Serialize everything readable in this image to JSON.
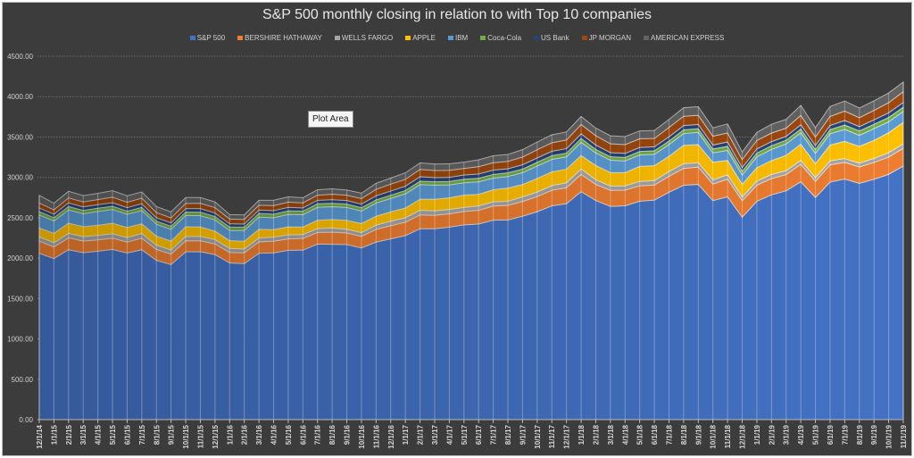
{
  "chart_data": {
    "type": "area",
    "stacked": true,
    "title": "S&P 500  monthly closing in relation to with Top 10 companies",
    "ylim": [
      0,
      4500
    ],
    "yticks": [
      "0.00",
      "500.00",
      "1000.00",
      "1500.00",
      "2000.00",
      "2500.00",
      "3000.00",
      "3500.00",
      "4000.00",
      "4500.00"
    ],
    "grid": true,
    "legend_position": "top",
    "tooltip": "Plot Area",
    "x": [
      "12/1/14",
      "1/1/15",
      "2/1/15",
      "3/1/15",
      "4/1/15",
      "5/1/15",
      "6/1/15",
      "7/1/15",
      "8/1/15",
      "9/1/15",
      "10/1/15",
      "11/1/15",
      "12/1/15",
      "1/1/16",
      "2/1/16",
      "3/1/16",
      "4/1/16",
      "5/1/16",
      "6/1/16",
      "7/1/16",
      "8/1/16",
      "9/1/16",
      "10/1/16",
      "11/1/16",
      "12/1/16",
      "1/1/17",
      "2/1/17",
      "3/1/17",
      "4/1/17",
      "5/1/17",
      "6/1/17",
      "7/1/17",
      "8/1/17",
      "9/1/17",
      "10/1/17",
      "11/1/17",
      "12/1/17",
      "1/1/18",
      "2/1/18",
      "3/1/18",
      "4/1/18",
      "5/1/18",
      "6/1/18",
      "7/1/18",
      "8/1/18",
      "9/1/18",
      "10/1/18",
      "11/1/18",
      "12/1/18",
      "1/1/19",
      "2/1/19",
      "3/1/19",
      "4/1/19",
      "5/1/19",
      "6/1/19",
      "7/1/19",
      "8/1/19",
      "9/1/19",
      "10/1/19",
      "11/1/19"
    ],
    "series": [
      {
        "name": "S&P 500",
        "color": "#4472c4",
        "values": [
          2059,
          1995,
          2104,
          2068,
          2086,
          2107,
          2063,
          2104,
          1972,
          1920,
          2079,
          2080,
          2044,
          1940,
          1932,
          2060,
          2065,
          2097,
          2099,
          2174,
          2171,
          2168,
          2126,
          2199,
          2239,
          2279,
          2364,
          2363,
          2384,
          2412,
          2423,
          2470,
          2472,
          2519,
          2575,
          2648,
          2674,
          2824,
          2714,
          2641,
          2648,
          2705,
          2718,
          2816,
          2902,
          2914,
          2712,
          2760,
          2507,
          2704,
          2784,
          2834,
          2946,
          2752,
          2942,
          2980,
          2926,
          2977,
          3038,
          3141
        ]
      },
      {
        "name": "BERSHIRE HATHAWAY",
        "color": "#ed7d31",
        "values": [
          150,
          144,
          147,
          144,
          141,
          140,
          136,
          143,
          135,
          130,
          136,
          134,
          132,
          130,
          134,
          142,
          145,
          140,
          145,
          144,
          151,
          144,
          144,
          157,
          163,
          165,
          171,
          167,
          165,
          165,
          169,
          175,
          181,
          183,
          187,
          193,
          198,
          214,
          199,
          199,
          194,
          191,
          187,
          198,
          209,
          214,
          205,
          218,
          204,
          201,
          201,
          201,
          217,
          199,
          213,
          205,
          203,
          208,
          213,
          220
        ]
      },
      {
        "name": "WELLS FARGO",
        "color": "#a5a5a5",
        "values": [
          55,
          52,
          55,
          54,
          55,
          56,
          56,
          58,
          53,
          51,
          54,
          55,
          54,
          50,
          47,
          48,
          50,
          51,
          47,
          48,
          51,
          44,
          46,
          53,
          55,
          56,
          58,
          56,
          54,
          51,
          55,
          53,
          51,
          56,
          56,
          57,
          61,
          66,
          58,
          52,
          52,
          54,
          55,
          57,
          58,
          53,
          53,
          54,
          46,
          49,
          50,
          48,
          48,
          44,
          50,
          48,
          47,
          50,
          54,
          54
        ]
      },
      {
        "name": "APPLE",
        "color": "#ffc000",
        "values": [
          110,
          117,
          128,
          124,
          125,
          130,
          125,
          121,
          113,
          110,
          120,
          118,
          105,
          97,
          97,
          108,
          94,
          100,
          95,
          104,
          106,
          113,
          113,
          111,
          116,
          121,
          137,
          144,
          144,
          153,
          144,
          149,
          164,
          154,
          169,
          171,
          169,
          167,
          178,
          168,
          165,
          187,
          185,
          190,
          228,
          225,
          218,
          179,
          158,
          166,
          173,
          190,
          200,
          175,
          197,
          213,
          209,
          224,
          249,
          267
        ]
      },
      {
        "name": "IBM",
        "color": "#5b9bd5",
        "values": [
          160,
          153,
          163,
          160,
          171,
          169,
          163,
          162,
          147,
          145,
          140,
          139,
          138,
          125,
          131,
          151,
          146,
          153,
          152,
          160,
          158,
          159,
          154,
          162,
          166,
          175,
          180,
          174,
          160,
          152,
          154,
          144,
          143,
          146,
          154,
          154,
          153,
          163,
          155,
          153,
          145,
          141,
          140,
          145,
          146,
          151,
          115,
          124,
          114,
          134,
          139,
          141,
          141,
          127,
          138,
          149,
          136,
          145,
          134,
          134
        ]
      },
      {
        "name": "Coca-Cola",
        "color": "#70ad47",
        "values": [
          42,
          41,
          43,
          41,
          41,
          41,
          39,
          41,
          39,
          40,
          42,
          43,
          43,
          43,
          43,
          46,
          45,
          45,
          44,
          44,
          43,
          42,
          42,
          40,
          41,
          42,
          43,
          42,
          43,
          45,
          45,
          46,
          46,
          45,
          46,
          46,
          46,
          48,
          43,
          43,
          43,
          43,
          44,
          44,
          46,
          46,
          48,
          50,
          47,
          48,
          45,
          47,
          47,
          49,
          51,
          53,
          55,
          54,
          54,
          53
        ]
      },
      {
        "name": "US Bank",
        "color": "#264478",
        "values": [
          45,
          42,
          45,
          44,
          43,
          44,
          43,
          45,
          41,
          41,
          42,
          44,
          43,
          40,
          39,
          41,
          43,
          43,
          40,
          42,
          44,
          43,
          44,
          50,
          51,
          53,
          55,
          52,
          51,
          51,
          52,
          53,
          50,
          54,
          54,
          55,
          55,
          57,
          54,
          50,
          50,
          50,
          50,
          53,
          53,
          53,
          50,
          54,
          46,
          51,
          51,
          48,
          53,
          49,
          52,
          57,
          53,
          55,
          58,
          60
        ]
      },
      {
        "name": "JP MORGAN",
        "color": "#9e480e",
        "values": [
          62,
          54,
          61,
          61,
          63,
          68,
          68,
          69,
          64,
          61,
          64,
          67,
          66,
          59,
          56,
          59,
          63,
          64,
          62,
          64,
          68,
          66,
          69,
          80,
          86,
          85,
          91,
          88,
          87,
          82,
          91,
          92,
          91,
          95,
          101,
          105,
          107,
          116,
          116,
          110,
          109,
          107,
          104,
          115,
          115,
          113,
          109,
          111,
          98,
          104,
          106,
          101,
          116,
          106,
          112,
          116,
          110,
          118,
          125,
          132
        ]
      },
      {
        "name": "AMERICAN EXPRESS",
        "color": "#636363",
        "values": [
          93,
          81,
          81,
          78,
          77,
          80,
          78,
          76,
          74,
          74,
          73,
          70,
          70,
          55,
          56,
          61,
          65,
          66,
          64,
          66,
          66,
          64,
          66,
          74,
          74,
          80,
          80,
          79,
          79,
          77,
          84,
          85,
          86,
          91,
          96,
          98,
          99,
          99,
          93,
          99,
          99,
          98,
          98,
          100,
          106,
          106,
          103,
          112,
          95,
          100,
          109,
          109,
          123,
          114,
          123,
          124,
          120,
          117,
          120,
          120
        ]
      }
    ]
  }
}
